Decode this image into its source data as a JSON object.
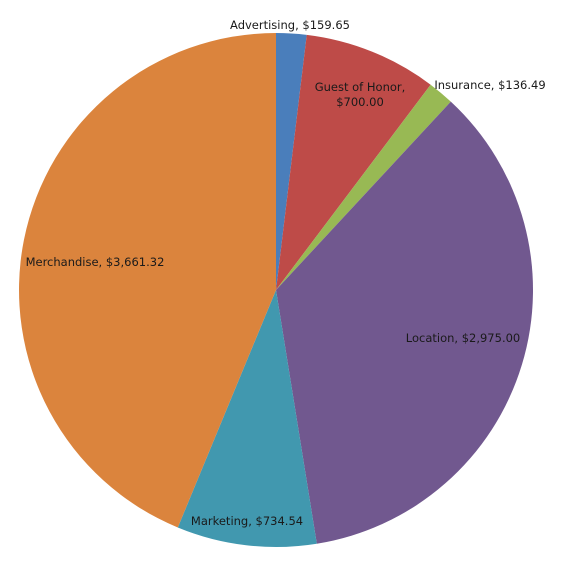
{
  "chart_data": {
    "type": "pie",
    "title": "",
    "slices": [
      {
        "name": "Advertising",
        "value": 159.65,
        "label": "Advertising, $159.65",
        "color": "#4A7EBB"
      },
      {
        "name": "Guest of Honor",
        "value": 700.0,
        "label": "Guest of Honor, $700.00",
        "label_line1": "Guest of Honor,",
        "label_line2": "$700.00",
        "color": "#BE4B48"
      },
      {
        "name": "Insurance",
        "value": 136.49,
        "label": "Insurance, $136.49",
        "color": "#98B954"
      },
      {
        "name": "Location",
        "value": 2975.0,
        "label": "Location, $2,975.00",
        "color": "#71588F"
      },
      {
        "name": "Marketing",
        "value": 734.54,
        "label": "Marketing, $734.54",
        "color": "#4198AF"
      },
      {
        "name": "Merchandise",
        "value": 3661.32,
        "label": "Merchandise, $3,661.32",
        "color": "#DB843D"
      }
    ],
    "start_angle": "12 o'clock",
    "direction": "clockwise",
    "legend": "none"
  }
}
